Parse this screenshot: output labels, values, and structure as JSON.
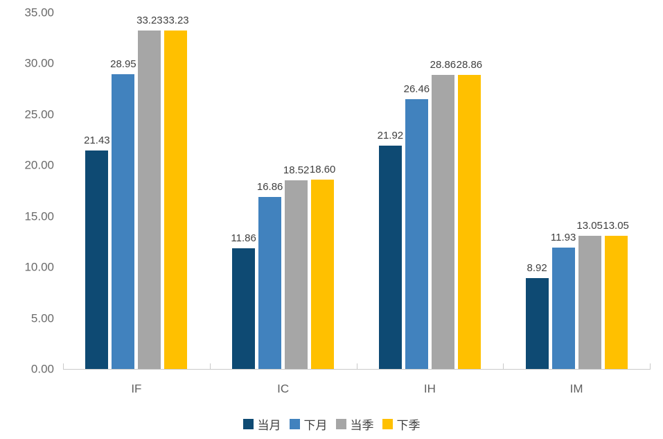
{
  "chart_data": {
    "type": "bar",
    "title": "",
    "xlabel": "",
    "ylabel": "",
    "categories": [
      "IF",
      "IC",
      "IH",
      "IM"
    ],
    "series": [
      {
        "name": "当月",
        "color": "#0E4A73",
        "values": [
          21.43,
          11.86,
          21.92,
          8.92
        ]
      },
      {
        "name": "下月",
        "color": "#4182BE",
        "values": [
          28.95,
          16.86,
          26.46,
          11.93
        ]
      },
      {
        "name": "当季",
        "color": "#A6A6A6",
        "values": [
          33.23,
          18.52,
          28.86,
          13.05
        ]
      },
      {
        "name": "下季",
        "color": "#FFC000",
        "values": [
          33.23,
          18.6,
          28.86,
          13.05
        ]
      }
    ],
    "ylim": [
      0,
      35
    ],
    "ytick_step": 5,
    "ytick_labels": [
      "0.00",
      "5.00",
      "10.00",
      "15.00",
      "20.00",
      "25.00",
      "30.00",
      "35.00"
    ],
    "grid": false,
    "legend_position": "bottom",
    "value_labels_shown": true
  },
  "colors": {
    "background": "#FFFFFF",
    "axis_line": "#C9C9C9",
    "ytick_label": "#6A6A6A",
    "xtick_label": "#5F5F5F",
    "value_label": "#3F3F3F",
    "legend_label": "#3F3F3F"
  }
}
